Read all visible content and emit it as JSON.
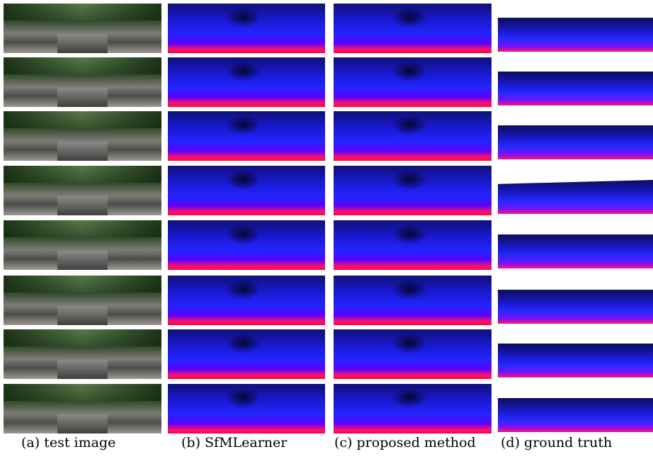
{
  "columns": [
    {
      "key": "test_image",
      "caption": "(a) test image"
    },
    {
      "key": "sfmlearner",
      "caption": "(b) SfMLearner"
    },
    {
      "key": "proposed",
      "caption": "(c) proposed method"
    },
    {
      "key": "ground_truth",
      "caption": "(d) ground truth"
    }
  ],
  "row_count": 8
}
